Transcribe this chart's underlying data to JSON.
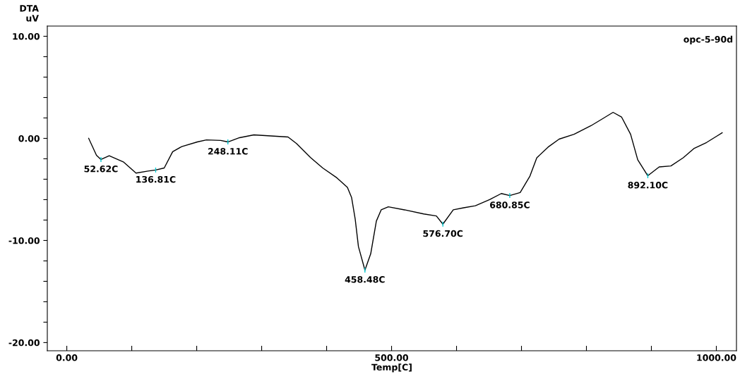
{
  "chart_data": {
    "type": "line",
    "ylabel": "DTA\nuV",
    "xlabel": "Temp[C]",
    "x": [
      33.7,
      45.7,
      52.6,
      65.3,
      87,
      106.6,
      125,
      136.8,
      150,
      163,
      177,
      201,
      215,
      237,
      248,
      266,
      288,
      340.6,
      353.6,
      375,
      394,
      415.7,
      432,
      438.5,
      444,
      449,
      459,
      467.9,
      476.6,
      484,
      495,
      520,
      549.5,
      569,
      579,
      595,
      611,
      629,
      651,
      669,
      682,
      698,
      713,
      723.6,
      742,
      758,
      781,
      807,
      825,
      841,
      854,
      868,
      879,
      894.5,
      912,
      930,
      949,
      966,
      985,
      1009
    ],
    "series": [
      {
        "color": "#000000",
        "values": [
          0,
          -1.66,
          -2.07,
          -1.7,
          -2.3,
          -3.4,
          -3.2,
          -3.1,
          -2.9,
          -1.3,
          -0.8,
          -0.35,
          -0.15,
          -0.2,
          -0.35,
          0.07,
          0.34,
          0.14,
          -0.5,
          -1.86,
          -2.9,
          -3.86,
          -4.8,
          -5.8,
          -7.9,
          -10.6,
          -12.9,
          -11.3,
          -8.1,
          -7.0,
          -6.7,
          -7.0,
          -7.4,
          -7.6,
          -8.4,
          -7.0,
          -6.8,
          -6.6,
          -6.0,
          -5.4,
          -5.6,
          -5.3,
          -3.7,
          -1.9,
          -0.8,
          -0.07,
          0.4,
          1.24,
          1.93,
          2.55,
          2.1,
          0.4,
          -2.1,
          -3.66,
          -2.8,
          -2.7,
          -1.9,
          -0.97,
          -0.4,
          0.55
        ]
      }
    ],
    "xlim": [
      -30,
      1031
    ],
    "ylim": [
      -20.8,
      11
    ],
    "xticks": [
      {
        "value": 0,
        "label": "0.00"
      },
      {
        "value": 100,
        "label": null
      },
      {
        "value": 200,
        "label": null
      },
      {
        "value": 300,
        "label": null
      },
      {
        "value": 400,
        "label": null
      },
      {
        "value": 500,
        "label": "500.00"
      },
      {
        "value": 600,
        "label": null
      },
      {
        "value": 700,
        "label": null
      },
      {
        "value": 800,
        "label": null
      },
      {
        "value": 900,
        "label": null
      },
      {
        "value": 1000,
        "label": "1000.00"
      }
    ],
    "yticks": [
      {
        "value": -20,
        "label": "-20.00"
      },
      {
        "value": -18,
        "label": null
      },
      {
        "value": -16,
        "label": null
      },
      {
        "value": -14,
        "label": null
      },
      {
        "value": -12,
        "label": null
      },
      {
        "value": -10,
        "label": "-10.00"
      },
      {
        "value": -8,
        "label": null
      },
      {
        "value": -6,
        "label": null
      },
      {
        "value": -4,
        "label": null
      },
      {
        "value": -2,
        "label": null
      },
      {
        "value": 0,
        "label": "0.00"
      },
      {
        "value": 2,
        "label": null
      },
      {
        "value": 4,
        "label": null
      },
      {
        "value": 6,
        "label": null
      },
      {
        "value": 8,
        "label": null
      },
      {
        "value": 10,
        "label": "10.00"
      }
    ],
    "annotations": [
      "opc-5-90d",
      {
        "text": "52.62C",
        "x": 52.6,
        "y": -2.07
      },
      {
        "text": "136.81C",
        "x": 136.8,
        "y": -3.1
      },
      {
        "text": "248.11C",
        "x": 248,
        "y": -0.35
      },
      {
        "text": "458.48C",
        "x": 459,
        "y": -12.9
      },
      {
        "text": "576.70C",
        "x": 579,
        "y": -8.4
      },
      {
        "text": "680.85C",
        "x": 682,
        "y": -5.6
      },
      {
        "text": "892.10C",
        "x": 894.5,
        "y": -3.66
      }
    ],
    "grid": false,
    "line_style": "solid",
    "marker": "none"
  }
}
